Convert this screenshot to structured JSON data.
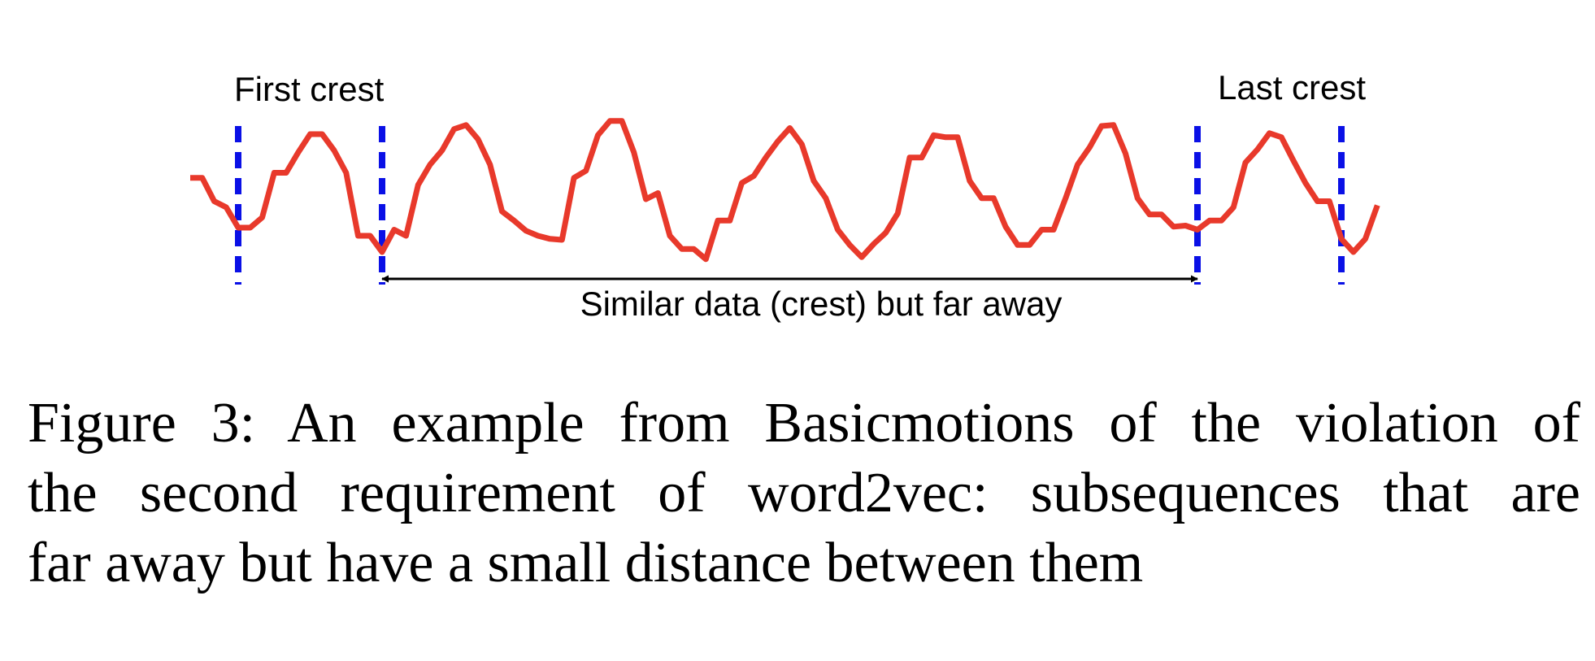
{
  "figure": {
    "labels": {
      "first_crest": "First crest",
      "last_crest": "Last crest",
      "span": "Similar data (crest) but far away"
    },
    "series": [
      0.85,
      0.85,
      0.62,
      0.56,
      0.36,
      0.36,
      0.46,
      0.9,
      0.9,
      1.1,
      1.28,
      1.28,
      1.12,
      0.9,
      0.28,
      0.28,
      0.12,
      0.34,
      0.28,
      0.78,
      0.98,
      1.12,
      1.33,
      1.37,
      1.23,
      0.98,
      0.52,
      0.43,
      0.33,
      0.28,
      0.25,
      0.24,
      0.85,
      0.92,
      1.27,
      1.41,
      1.41,
      1.1,
      0.64,
      0.7,
      0.28,
      0.15,
      0.15,
      0.05,
      0.43,
      0.43,
      0.8,
      0.87,
      1.05,
      1.21,
      1.34,
      1.18,
      0.82,
      0.65,
      0.34,
      0.19,
      0.07,
      0.2,
      0.31,
      0.5,
      1.05,
      1.05,
      1.27,
      1.25,
      1.25,
      0.82,
      0.65,
      0.65,
      0.37,
      0.19,
      0.19,
      0.34,
      0.34,
      0.65,
      0.98,
      1.15,
      1.36,
      1.37,
      1.09,
      0.65,
      0.49,
      0.49,
      0.37,
      0.38,
      0.34,
      0.43,
      0.43,
      0.56,
      1.0,
      1.13,
      1.29,
      1.25,
      1.02,
      0.8,
      0.62,
      0.62,
      0.25,
      0.12,
      0.25,
      0.58
    ],
    "markers": [
      4,
      16,
      84,
      96
    ],
    "span_between_markers": [
      1,
      2
    ],
    "colors": {
      "series": "#e8392b",
      "markers": "#0a10e6",
      "arrow": "#000000"
    }
  },
  "caption": {
    "lines": [
      "Figure 3: An example from Basicmotions of the violation of",
      "the second requirement of word2vec: subsequences that are",
      "far away but have a small distance between them"
    ]
  }
}
